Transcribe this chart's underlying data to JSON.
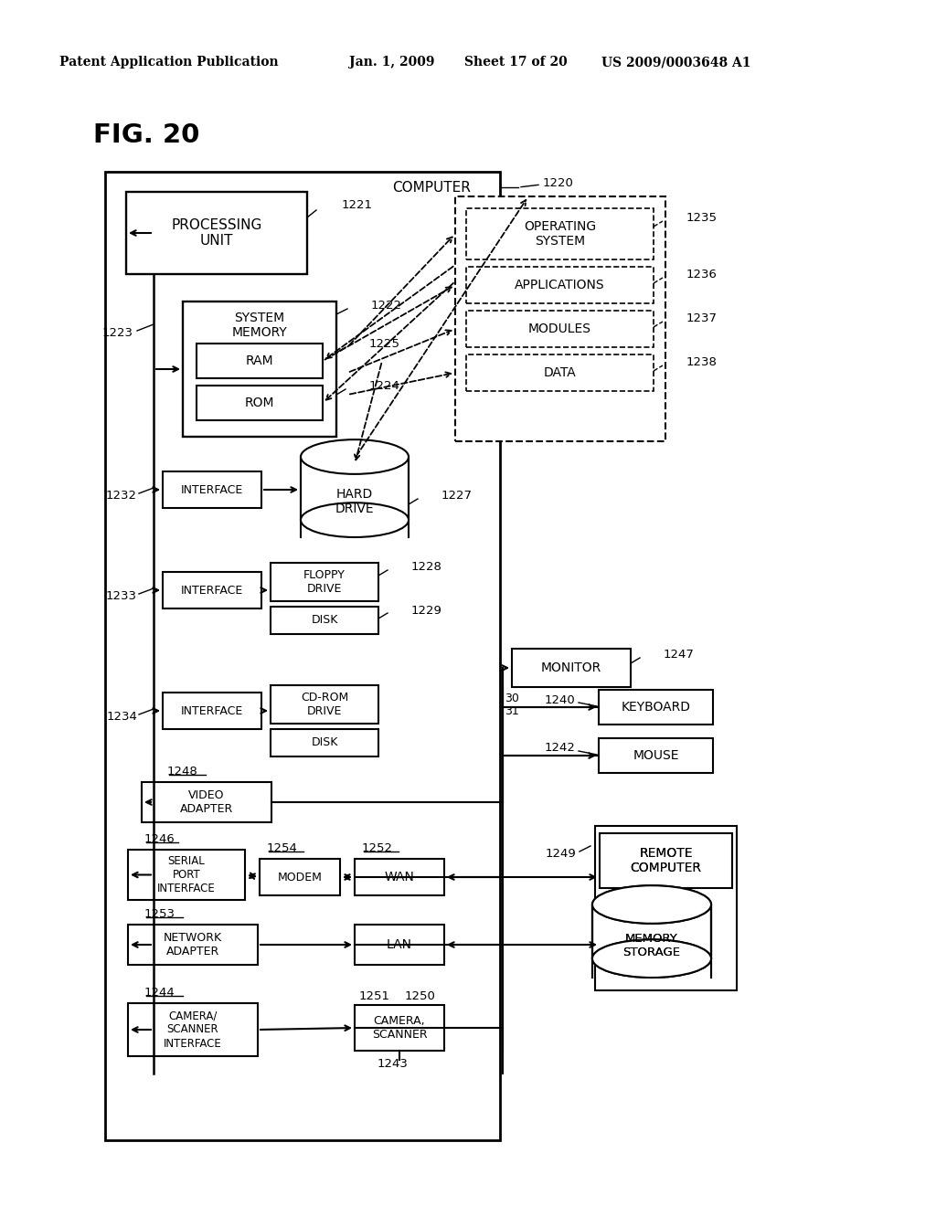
{
  "bg": "#ffffff",
  "header": "Patent Application Publication",
  "date": "Jan. 1, 2009",
  "sheet": "Sheet 17 of 20",
  "patent": "US 2009/0003648 A1",
  "fig": "FIG. 20"
}
